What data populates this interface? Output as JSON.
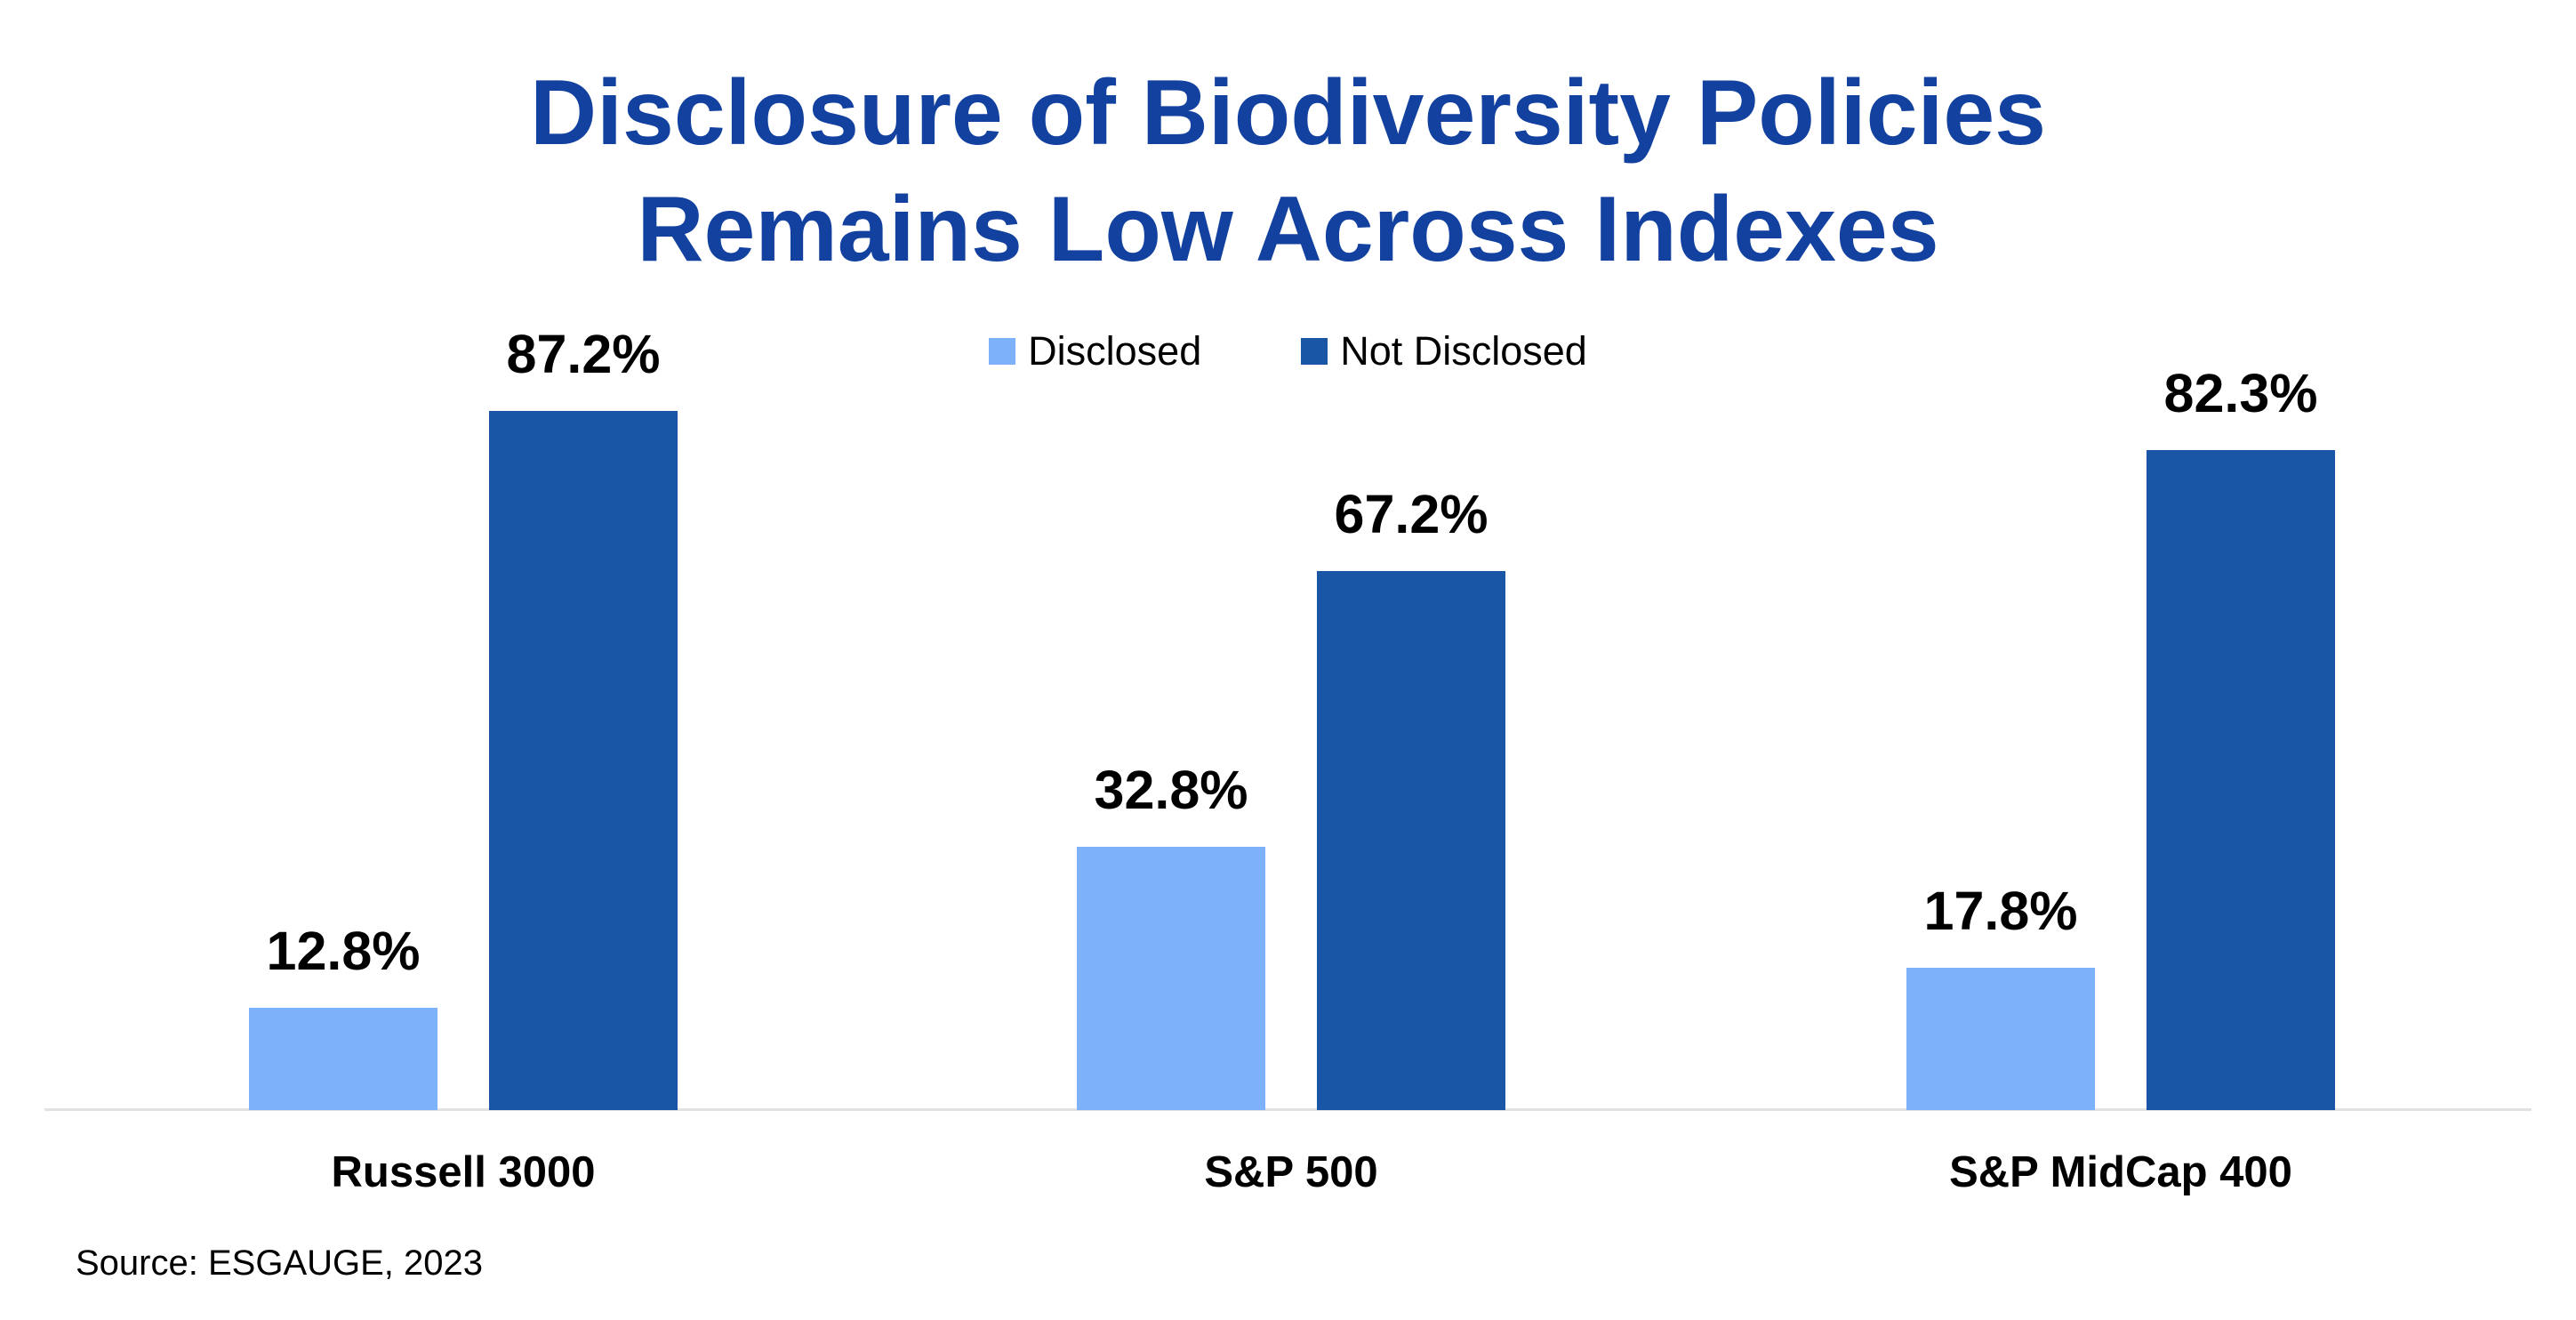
{
  "page": {
    "background_color": "#ffffff",
    "title_color": "#1341a0",
    "baseline_color": "#e2e2e2"
  },
  "chart_data": {
    "type": "bar",
    "title": "Disclosure of Biodiversity Policies Remains Low Across Indexes",
    "title_lines": [
      "Disclosure of Biodiversity Policies",
      "Remains Low Across Indexes"
    ],
    "categories": [
      "Russell 3000",
      "S&P 500",
      "S&P MidCap 400"
    ],
    "series": [
      {
        "name": "Disclosed",
        "color": "#7db2fb",
        "values": [
          12.8,
          32.8,
          17.8
        ]
      },
      {
        "name": "Not Disclosed",
        "color": "#1a56a6",
        "values": [
          87.2,
          67.2,
          82.3
        ]
      }
    ],
    "value_labels": [
      [
        "12.8%",
        "32.8%",
        "17.8%"
      ],
      [
        "87.2%",
        "67.2%",
        "82.3%"
      ]
    ],
    "value_suffix": "%",
    "ylim": [
      0,
      100
    ],
    "grid": false,
    "axis_line": "x-only",
    "legend_position": "top-center",
    "source": "Source: ESGAUGE, 2023"
  }
}
